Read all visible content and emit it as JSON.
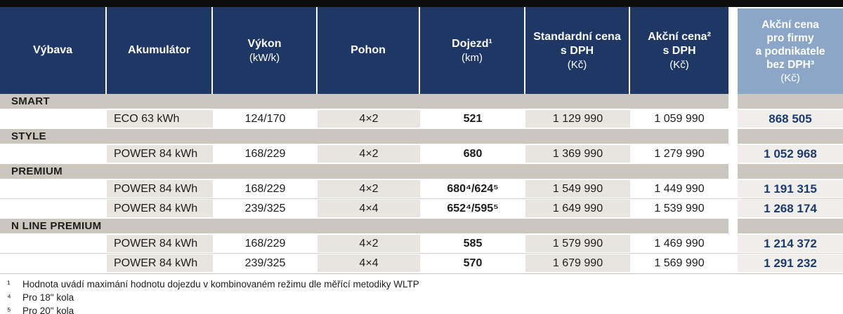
{
  "colors": {
    "header_navy": "#1e3765",
    "header_light_blue": "#8ca6c8",
    "section_gray": "#cbc7bf",
    "cell_shade_gray": "#e8e5e0",
    "business_cell_bg": "#f0eeea",
    "business_value_navy": "#1c3a6e",
    "top_bar_black": "#0c0c0c"
  },
  "table": {
    "columns": [
      {
        "title": "Výbava",
        "unit": ""
      },
      {
        "title": "Akumulátor",
        "unit": ""
      },
      {
        "title": "Výkon",
        "unit": "(kW/k)"
      },
      {
        "title": "Pohon",
        "unit": ""
      },
      {
        "title": "Dojezd¹",
        "unit": "(km)"
      },
      {
        "title": "Standardní cena\ns DPH",
        "unit": "(Kč)"
      },
      {
        "title": "Akční cena²\ns DPH",
        "unit": "(Kč)"
      },
      {
        "title": "Akční cena\npro firmy\na podnikatele\nbez DPH³",
        "unit": "(Kč)"
      }
    ],
    "sections": [
      {
        "name": "SMART",
        "rows": [
          [
            "ECO 63 kWh",
            "124/170",
            "4×2",
            "521",
            "1 129 990",
            "1 059 990",
            "868 505"
          ]
        ]
      },
      {
        "name": "STYLE",
        "rows": [
          [
            "POWER 84 kWh",
            "168/229",
            "4×2",
            "680",
            "1 369 990",
            "1 279 990",
            "1 052 968"
          ]
        ]
      },
      {
        "name": "PREMIUM",
        "rows": [
          [
            "POWER 84 kWh",
            "168/229",
            "4×2",
            "680⁴/624⁵",
            "1 549 990",
            "1 449 990",
            "1 191 315"
          ],
          [
            "POWER 84 kWh",
            "239/325",
            "4×4",
            "652⁴/595⁵",
            "1 649 990",
            "1 539 990",
            "1 268 174"
          ]
        ]
      },
      {
        "name": "N LINE PREMIUM",
        "rows": [
          [
            "POWER 84 kWh",
            "168/229",
            "4×2",
            "585",
            "1 579 990",
            "1 469 990",
            "1 214 372"
          ],
          [
            "POWER 84 kWh",
            "239/325",
            "4×4",
            "570",
            "1 679 990",
            "1 569 990",
            "1 291 232"
          ]
        ]
      }
    ]
  },
  "footnotes": [
    {
      "marker": "¹",
      "text": "Hodnota uvádí maximání hodnotu dojezdu v kombinovaném režimu dle měřící metodiky WLTP"
    },
    {
      "marker": "⁴",
      "text": "Pro 18\" kola"
    },
    {
      "marker": "⁵",
      "text": "Pro 20\" kola"
    }
  ]
}
